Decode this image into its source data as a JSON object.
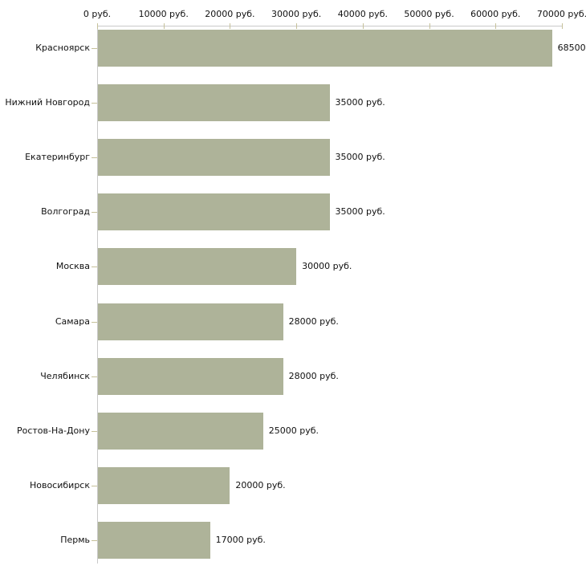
{
  "chart_data": {
    "type": "bar",
    "orientation": "horizontal",
    "title": "",
    "xlabel": "",
    "ylabel": "",
    "axis_labels_position": "top",
    "grid": false,
    "legend": false,
    "xlim": [
      0,
      70000
    ],
    "x_tick_values": [
      0,
      10000,
      20000,
      30000,
      40000,
      50000,
      60000,
      70000
    ],
    "x_tick_labels": [
      "0 руб.",
      "10000 руб.",
      "20000 руб.",
      "30000 руб.",
      "40000 руб.",
      "50000 руб.",
      "60000 руб.",
      "70000 руб."
    ],
    "categories": [
      "Красноярск",
      "Нижний Новгород",
      "Екатеринбург",
      "Волгоград",
      "Москва",
      "Самара",
      "Челябинск",
      "Ростов-На-Дону",
      "Новосибирск",
      "Пермь"
    ],
    "values": [
      68500,
      35000,
      35000,
      35000,
      30000,
      28000,
      28000,
      25000,
      20000,
      17000
    ],
    "value_labels": [
      "68500",
      "35000 руб.",
      "35000 руб.",
      "35000 руб.",
      "30000 руб.",
      "28000 руб.",
      "28000 руб.",
      "25000 руб.",
      "20000 руб.",
      "17000 руб."
    ],
    "colors": {
      "bar": "#aeb399",
      "axis_line": "#c9c9c9",
      "tick_mark": "#c6c19a",
      "text": "#111111",
      "background": "#ffffff"
    }
  }
}
